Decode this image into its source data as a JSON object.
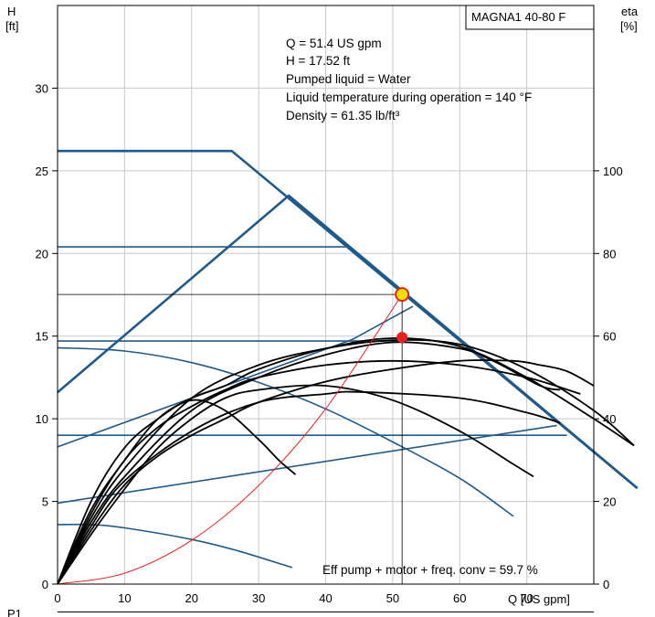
{
  "chart_data": {
    "type": "line",
    "title": "MAGNA1 40-80 F",
    "xlabel": "Q [US gpm]",
    "ylabel_left": [
      "H",
      "[ft]"
    ],
    "ylabel_right": [
      "eta",
      "[%]"
    ],
    "xlim": [
      0,
      80
    ],
    "ylim_left": [
      0,
      35
    ],
    "ylim_right": [
      0,
      140
    ],
    "x_ticks": [
      "0",
      "10",
      "20",
      "30",
      "40",
      "50",
      "60",
      "70"
    ],
    "y_ticks_left": [
      "0",
      "5",
      "10",
      "15",
      "20",
      "25",
      "30"
    ],
    "y_ticks_right": [
      "0",
      "20",
      "40",
      "60",
      "80",
      "100"
    ],
    "grid": true,
    "info_lines": [
      "Q = 51.4 US gpm",
      "H = 17.52 ft",
      "Pumped liquid = Water",
      "Liquid temperature during operation = 140 °F",
      "Density = 61.35 lb/ft³"
    ],
    "efficiency_note": "Eff pump + motor + freq. conv = 59.7 %",
    "next_panel_label": "P1",
    "colors": {
      "pump": "#1f5a8c",
      "efficiency": "#000000",
      "system": "#e8201c",
      "operating_point": "#f0e000"
    },
    "duty_point": {
      "q": 51.4,
      "h": 17.52,
      "eta": 59.7
    },
    "pump_curves": [
      {
        "points": [
          [
            0,
            26.2
          ],
          [
            26,
            26.2
          ],
          [
            86.5,
            5.8
          ]
        ]
      },
      {
        "points": [
          [
            0,
            20.4
          ],
          [
            43,
            20.4
          ]
        ]
      },
      {
        "points": [
          [
            0,
            14.7
          ],
          [
            52,
            14.7
          ]
        ]
      },
      {
        "points": [
          [
            0,
            9.0
          ],
          [
            76,
            9.0
          ]
        ]
      },
      {
        "points": [
          [
            0,
            11.6
          ],
          [
            34.5,
            23.5
          ],
          [
            86.5,
            5.8
          ]
        ]
      },
      {
        "points": [
          [
            0,
            8.3
          ],
          [
            44,
            14.8
          ],
          [
            53,
            16.8
          ]
        ]
      },
      {
        "points": [
          [
            0,
            4.9
          ],
          [
            74.5,
            9.6
          ]
        ]
      },
      {
        "points": [
          [
            0,
            14.3
          ],
          [
            10,
            14.1
          ],
          [
            20,
            13.4
          ],
          [
            30,
            12.2
          ],
          [
            40,
            10.6
          ],
          [
            50,
            8.6
          ],
          [
            60,
            6.4
          ],
          [
            68,
            4.1
          ]
        ]
      },
      {
        "points": [
          [
            0,
            3.6
          ],
          [
            5,
            3.6
          ],
          [
            10,
            3.4
          ],
          [
            20,
            2.7
          ],
          [
            27,
            2.0
          ],
          [
            35,
            1.0
          ]
        ]
      }
    ],
    "efficiency_curves": [
      {
        "points": [
          [
            0,
            0
          ],
          [
            5,
            14
          ],
          [
            10,
            25
          ],
          [
            20,
            37
          ],
          [
            30,
            44
          ],
          [
            40,
            46
          ],
          [
            45,
            46.5
          ],
          [
            60,
            45
          ],
          [
            70,
            41.5
          ],
          [
            75,
            39
          ]
        ]
      },
      {
        "points": [
          [
            0,
            0
          ],
          [
            5,
            18
          ],
          [
            10,
            30
          ],
          [
            15,
            40
          ],
          [
            20,
            45
          ],
          [
            25,
            48
          ],
          [
            30,
            52
          ],
          [
            40,
            57
          ],
          [
            50,
            59.5
          ],
          [
            60,
            57.5
          ],
          [
            70,
            50
          ],
          [
            80,
            40
          ],
          [
            86,
            33.5
          ]
        ]
      },
      {
        "points": [
          [
            0,
            0
          ],
          [
            5,
            16
          ],
          [
            10,
            28
          ],
          [
            20,
            45
          ],
          [
            30,
            53
          ],
          [
            40,
            57
          ],
          [
            50,
            59
          ],
          [
            60,
            58
          ],
          [
            70,
            52
          ],
          [
            80,
            42
          ],
          [
            86,
            33.5
          ]
        ]
      },
      {
        "points": [
          [
            0,
            0
          ],
          [
            5,
            15
          ],
          [
            10,
            26
          ],
          [
            20,
            42
          ],
          [
            30,
            50
          ],
          [
            40,
            55.5
          ],
          [
            50,
            58.5
          ],
          [
            60,
            57
          ],
          [
            65,
            54
          ],
          [
            72,
            48
          ],
          [
            75,
            47
          ]
        ]
      },
      {
        "points": [
          [
            0,
            0
          ],
          [
            5,
            12
          ],
          [
            10,
            23
          ],
          [
            15,
            33
          ],
          [
            20,
            40
          ],
          [
            25,
            45
          ],
          [
            30,
            47
          ],
          [
            40,
            48
          ],
          [
            50,
            44.5
          ],
          [
            60,
            37
          ],
          [
            68,
            29
          ],
          [
            71,
            26
          ]
        ]
      },
      {
        "points": [
          [
            0,
            0
          ],
          [
            5,
            13
          ],
          [
            10,
            24
          ],
          [
            15,
            31
          ],
          [
            20,
            36
          ],
          [
            25,
            40
          ],
          [
            30,
            44
          ],
          [
            40,
            49
          ],
          [
            50,
            52
          ],
          [
            60,
            54
          ],
          [
            68,
            54
          ],
          [
            72,
            53
          ],
          [
            76,
            51.5
          ],
          [
            80,
            48
          ]
        ]
      },
      {
        "points": [
          [
            0,
            0
          ],
          [
            5,
            20
          ],
          [
            10,
            33
          ],
          [
            15,
            40
          ],
          [
            20,
            44.5
          ],
          [
            25,
            42
          ],
          [
            30,
            35
          ],
          [
            33,
            30
          ],
          [
            35.5,
            26.5
          ]
        ]
      },
      {
        "points": [
          [
            0,
            0
          ],
          [
            5,
            17
          ],
          [
            10,
            30
          ],
          [
            15,
            38
          ],
          [
            20,
            43
          ],
          [
            25,
            47
          ],
          [
            30,
            50
          ],
          [
            40,
            53
          ],
          [
            50,
            54
          ],
          [
            60,
            53
          ],
          [
            70,
            50
          ],
          [
            78,
            46
          ]
        ]
      }
    ],
    "system_curve": {
      "points": [
        [
          0,
          0
        ],
        [
          10,
          0.66
        ],
        [
          20,
          2.65
        ],
        [
          30,
          5.96
        ],
        [
          40,
          10.6
        ],
        [
          51.4,
          17.52
        ]
      ]
    }
  }
}
